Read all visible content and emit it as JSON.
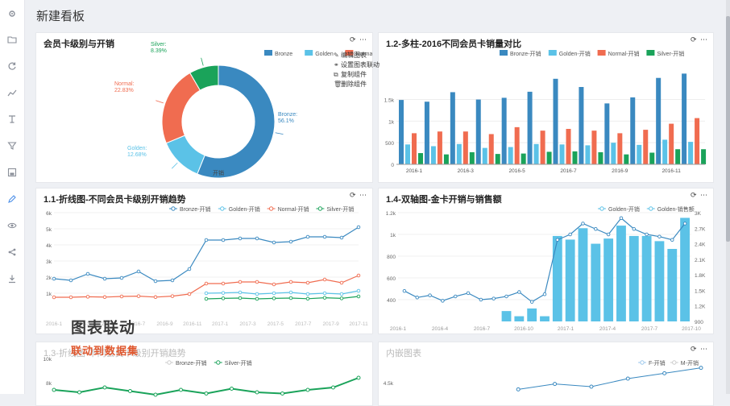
{
  "page": {
    "title": "新建看板"
  },
  "sidebar": {
    "icons": [
      "gear-icon",
      "folder-icon",
      "refresh-icon",
      "line-chart-icon",
      "text-tool-icon",
      "filter-icon",
      "save-icon",
      "edit-icon",
      "eye-icon",
      "share-icon",
      "download-icon"
    ]
  },
  "cards": {
    "donut": {
      "title": "会员卡级别与开销",
      "tools": "⟳ ⋯"
    },
    "bar": {
      "title": "1.2-多柱-2016不同会员卡销量对比",
      "tools": "⟳ ⋯"
    },
    "line": {
      "title": "1.1-折线图-不同会员卡级别开销趋势",
      "tools": "⟳ ⋯"
    },
    "dual": {
      "title": "1.4-双轴图-金卡开销与销售额",
      "tools": "⟳ ⋯"
    },
    "line2": {
      "title": "1.3-折线图-不同会员卡级别开销趋势",
      "tools": ""
    },
    "internal": {
      "title": "内嵌图表",
      "tools": "⟳ ⋯"
    }
  },
  "context_menu": {
    "items": [
      "编辑图表",
      "设置图表联动",
      "复制组件",
      "删除组件"
    ]
  },
  "overlay": {
    "line1": "图表联动",
    "line2": "联动到数据集"
  },
  "colors": {
    "bronze": "#3a89c0",
    "golden": "#5bc2e7",
    "normal": "#f06c50",
    "silver": "#1aa35a"
  },
  "chart_data": [
    {
      "type": "pie",
      "donut": true,
      "title": "会员卡级别与开销",
      "xlabel": "开销",
      "legend": [
        "Bronze",
        "Golden",
        "Normal",
        "Silver"
      ],
      "slices": [
        {
          "name": "Bronze",
          "value": 56.1,
          "label": "Bronze:\n56.1%"
        },
        {
          "name": "Golden",
          "value": 12.68,
          "label": "Golden:\n12.68%"
        },
        {
          "name": "Normal",
          "value": 22.83,
          "label": "Normal:\n22.83%"
        },
        {
          "name": "Silver",
          "value": 8.39,
          "label": "Silver:\n8.39%"
        }
      ]
    },
    {
      "type": "bar",
      "title": "1.2-多柱-2016不同会员卡销量对比",
      "categories": [
        "2016-1",
        "2016-2",
        "2016-3",
        "2016-4",
        "2016-5",
        "2016-6",
        "2016-7",
        "2016-8",
        "2016-9",
        "2016-10",
        "2016-11",
        "2016-12"
      ],
      "x_tick_labels": [
        "2016-1",
        "",
        "2016-3",
        "",
        "2016-5",
        "",
        "2016-7",
        "",
        "2016-9",
        "",
        "2016-11",
        ""
      ],
      "y_ticks": [
        "0",
        "500",
        "1k",
        "1.5k"
      ],
      "ylim": [
        0,
        2200
      ],
      "series": [
        {
          "name": "Bronze-开销",
          "values": [
            1490,
            1450,
            1670,
            1500,
            1540,
            1680,
            1980,
            1790,
            1410,
            1550,
            2000,
            2100
          ]
        },
        {
          "name": "Golden-开销",
          "values": [
            460,
            420,
            470,
            380,
            400,
            470,
            460,
            440,
            500,
            450,
            570,
            520
          ]
        },
        {
          "name": "Normal-开销",
          "values": [
            720,
            760,
            760,
            700,
            860,
            780,
            820,
            780,
            720,
            800,
            940,
            1070
          ]
        },
        {
          "name": "Silver-开销",
          "values": [
            260,
            230,
            280,
            240,
            250,
            290,
            300,
            280,
            230,
            270,
            350,
            350
          ]
        }
      ]
    },
    {
      "type": "line",
      "title": "1.1-折线图-不同会员卡级别开销趋势",
      "x_tick_labels": [
        "2016-1",
        "2016-3",
        "2016-5",
        "2016-7",
        "2016-9",
        "2016-11",
        "2017-1",
        "2017-3",
        "2017-5",
        "2017-7",
        "2017-9",
        "2017-11"
      ],
      "y_ticks": [
        "1k",
        "2k",
        "3k",
        "4k",
        "5k",
        "6k"
      ],
      "ylim": [
        0,
        6000
      ],
      "series": [
        {
          "name": "Bronze-开销",
          "values": [
            1900,
            1800,
            2200,
            1900,
            1950,
            2350,
            1750,
            1800,
            2500,
            4300,
            4300,
            4400,
            4400,
            4150,
            4200,
            4500,
            4500,
            4450,
            5100
          ]
        },
        {
          "name": "Golden-开销",
          "values": [
            null,
            null,
            null,
            null,
            null,
            null,
            null,
            null,
            null,
            1000,
            1020,
            1050,
            950,
            1000,
            1050,
            950,
            1000,
            950,
            1150
          ]
        },
        {
          "name": "Normal-开销",
          "values": [
            750,
            750,
            780,
            760,
            800,
            820,
            760,
            820,
            950,
            1600,
            1600,
            1700,
            1700,
            1550,
            1700,
            1650,
            1850,
            1650,
            2100
          ]
        },
        {
          "name": "Silver-开销",
          "values": [
            null,
            null,
            null,
            null,
            null,
            null,
            null,
            null,
            null,
            650,
            680,
            700,
            650,
            680,
            700,
            660,
            720,
            680,
            800
          ]
        }
      ]
    },
    {
      "type": "bar",
      "title": "1.4-双轴图-金卡开销与销售额",
      "x_tick_labels": [
        "2016-1",
        "2016-4",
        "2016-7",
        "2016-10",
        "2017-1",
        "2017-4",
        "2017-7",
        "2017-10"
      ],
      "y_ticks_left": [
        "400",
        "600",
        "800",
        "1k",
        "1.2k"
      ],
      "y_ticks_right": [
        "900",
        "1.2K",
        "1.5K",
        "1.8K",
        "2.1K",
        "2.4K",
        "2.7K",
        "3K"
      ],
      "series": [
        {
          "name": "Golden-开销",
          "values": [
            480,
            420,
            440,
            390,
            430,
            460,
            400,
            410,
            430,
            470,
            380,
            450,
            950,
            1000,
            1100,
            1050,
            1000,
            1150,
            1050,
            1000,
            980,
            950,
            1100
          ]
        },
        {
          "name": "Golden-销售额",
          "values": [
            null,
            null,
            null,
            null,
            null,
            null,
            null,
            null,
            1100,
            1000,
            1150,
            1000,
            2550,
            2480,
            2700,
            2400,
            2500,
            2750,
            2550,
            2550,
            2450,
            2300,
            2900
          ]
        }
      ]
    },
    {
      "type": "line",
      "title": "1.3-折线图-不同会员卡级别开销趋势",
      "y_ticks": [
        "8k",
        "10k"
      ],
      "series": [
        {
          "name": "Bronze-开销",
          "values": []
        },
        {
          "name": "Silver-开销",
          "values": [
            7400,
            7200,
            7600,
            7300,
            7000,
            7400,
            7100,
            7500,
            7200,
            7100,
            7400,
            7600,
            8400
          ]
        }
      ]
    },
    {
      "type": "line",
      "title": "内嵌图表",
      "y_ticks": [
        "4.5k"
      ],
      "series": [
        {
          "name": "F-开销",
          "values": [
            4300,
            4400,
            4350,
            4500,
            4600,
            4700
          ]
        },
        {
          "name": "M-开销",
          "values": []
        }
      ]
    }
  ]
}
